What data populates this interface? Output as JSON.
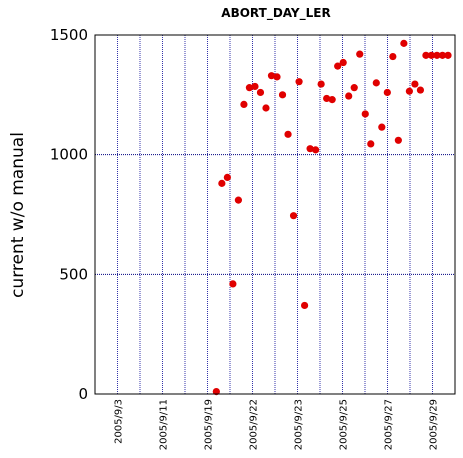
{
  "chart_data": {
    "type": "scatter",
    "title": "ABORT_DAY_LER",
    "xlabel": "",
    "ylabel": "current w/o manual",
    "ylim": [
      0,
      1500
    ],
    "yticks": [
      0,
      500,
      1000,
      1500
    ],
    "xticks": [
      "2005/9/3",
      "2005/9/11",
      "2005/9/19",
      "2005/9/22",
      "2005/9/23",
      "2005/9/25",
      "2005/9/27",
      "2005/9/29"
    ],
    "grid": true,
    "point_color": "#e00000",
    "vertical_grid_color": "#3333aa",
    "horizontal_grid_color": "#000080",
    "series": [
      {
        "index": [
          22,
          23,
          24,
          25,
          26,
          27,
          28,
          29,
          30,
          31,
          32,
          33,
          34,
          35,
          36,
          37,
          38,
          39,
          40,
          41,
          42,
          43,
          44,
          45,
          46,
          47,
          48,
          49,
          50,
          51,
          52,
          53,
          54,
          55,
          56,
          57,
          58,
          59,
          60,
          61,
          62,
          63,
          64
        ],
        "values": [
          10,
          880,
          905,
          460,
          810,
          1210,
          1280,
          1285,
          1260,
          1195,
          1330,
          1325,
          1250,
          1085,
          745,
          1305,
          370,
          1025,
          1020,
          1295,
          1235,
          1230,
          1370,
          1385,
          1245,
          1280,
          1420,
          1170,
          1045,
          1300,
          1115,
          1260,
          1410,
          1060,
          1465,
          1265,
          1295,
          1270,
          1415,
          1415,
          1415,
          1415,
          1415
        ]
      }
    ]
  }
}
